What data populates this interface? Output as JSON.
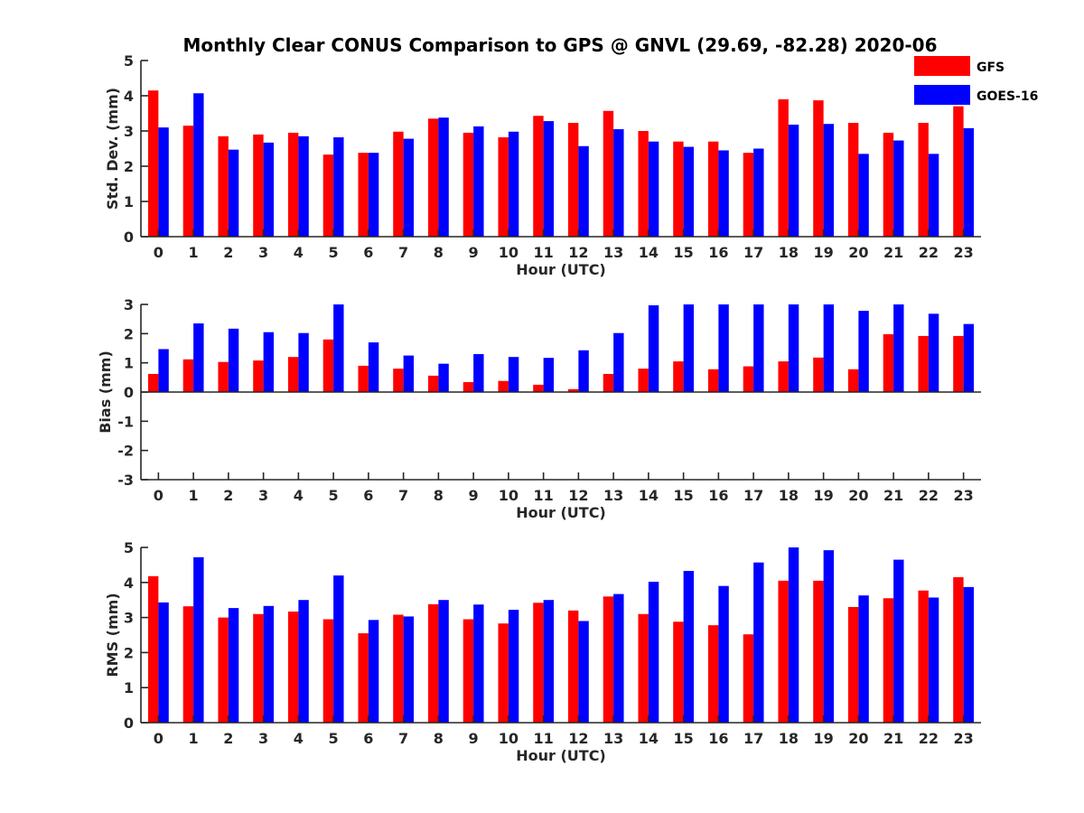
{
  "title": "Monthly Clear CONUS Comparison to GPS @ GNVL (29.69, -82.28) 2020-06",
  "colors": {
    "GFS": "#ff0000",
    "GOES-16": "#0000ff",
    "axis": "#262626"
  },
  "legend": {
    "placement": "top-right",
    "items": [
      "GFS",
      "GOES-16"
    ]
  },
  "chart_data": [
    {
      "type": "bar",
      "title": "Monthly Clear CONUS Comparison to GPS @ GNVL (29.69, -82.28) 2020-06",
      "xlabel": "Hour (UTC)",
      "ylabel": "Std. Dev. (mm)",
      "ylim": [
        0,
        5
      ],
      "yticks": [
        "0",
        "1",
        "2",
        "3",
        "4",
        "5"
      ],
      "categories": [
        "0",
        "1",
        "2",
        "3",
        "4",
        "5",
        "6",
        "7",
        "8",
        "9",
        "10",
        "11",
        "12",
        "13",
        "14",
        "15",
        "16",
        "17",
        "18",
        "19",
        "20",
        "21",
        "22",
        "23"
      ],
      "series": [
        {
          "name": "GFS",
          "values": [
            4.15,
            3.15,
            2.85,
            2.9,
            2.95,
            2.33,
            2.38,
            2.98,
            3.35,
            2.95,
            2.82,
            3.43,
            3.23,
            3.57,
            3.0,
            2.7,
            2.7,
            2.38,
            3.9,
            3.87,
            3.23,
            2.95,
            3.23,
            3.7
          ]
        },
        {
          "name": "GOES-16",
          "values": [
            3.1,
            4.07,
            2.47,
            2.67,
            2.85,
            2.82,
            2.38,
            2.78,
            3.38,
            3.13,
            2.98,
            3.28,
            2.57,
            3.05,
            2.7,
            2.55,
            2.45,
            2.5,
            3.18,
            3.2,
            2.35,
            2.73,
            2.35,
            3.08
          ]
        }
      ]
    },
    {
      "type": "bar",
      "xlabel": "Hour (UTC)",
      "ylabel": "Bias (mm)",
      "ylim": [
        -3,
        3
      ],
      "yticks": [
        "-3",
        "-2",
        "-1",
        "0",
        "1",
        "2",
        "3"
      ],
      "categories": [
        "0",
        "1",
        "2",
        "3",
        "4",
        "5",
        "6",
        "7",
        "8",
        "9",
        "10",
        "11",
        "12",
        "13",
        "14",
        "15",
        "16",
        "17",
        "18",
        "19",
        "20",
        "21",
        "22",
        "23"
      ],
      "series": [
        {
          "name": "GFS",
          "values": [
            0.62,
            1.12,
            1.03,
            1.08,
            1.2,
            1.8,
            0.9,
            0.8,
            0.56,
            0.34,
            0.38,
            0.25,
            0.1,
            0.62,
            0.8,
            1.05,
            0.78,
            0.88,
            1.05,
            1.18,
            0.78,
            1.98,
            1.92,
            1.92
          ]
        },
        {
          "name": "GOES-16",
          "values": [
            1.47,
            2.35,
            2.17,
            2.05,
            2.02,
            3.0,
            1.7,
            1.25,
            0.97,
            1.3,
            1.2,
            1.17,
            1.43,
            2.02,
            2.97,
            3.0,
            3.0,
            3.0,
            3.0,
            3.0,
            2.78,
            3.0,
            2.68,
            2.33
          ]
        }
      ]
    },
    {
      "type": "bar",
      "xlabel": "Hour (UTC)",
      "ylabel": "RMS (mm)",
      "ylim": [
        0,
        5
      ],
      "yticks": [
        "0",
        "1",
        "2",
        "3",
        "4",
        "5"
      ],
      "categories": [
        "0",
        "1",
        "2",
        "3",
        "4",
        "5",
        "6",
        "7",
        "8",
        "9",
        "10",
        "11",
        "12",
        "13",
        "14",
        "15",
        "16",
        "17",
        "18",
        "19",
        "20",
        "21",
        "22",
        "23"
      ],
      "series": [
        {
          "name": "GFS",
          "values": [
            4.18,
            3.32,
            3.0,
            3.1,
            3.17,
            2.95,
            2.55,
            3.08,
            3.38,
            2.95,
            2.83,
            3.42,
            3.2,
            3.6,
            3.1,
            2.88,
            2.78,
            2.52,
            4.05,
            4.05,
            3.3,
            3.55,
            3.77,
            4.15
          ]
        },
        {
          "name": "GOES-16",
          "values": [
            3.43,
            4.72,
            3.27,
            3.33,
            3.5,
            4.2,
            2.93,
            3.03,
            3.5,
            3.37,
            3.22,
            3.5,
            2.9,
            3.67,
            4.02,
            4.33,
            3.9,
            4.57,
            5.0,
            4.92,
            3.63,
            4.65,
            3.57,
            3.87
          ]
        }
      ]
    }
  ]
}
